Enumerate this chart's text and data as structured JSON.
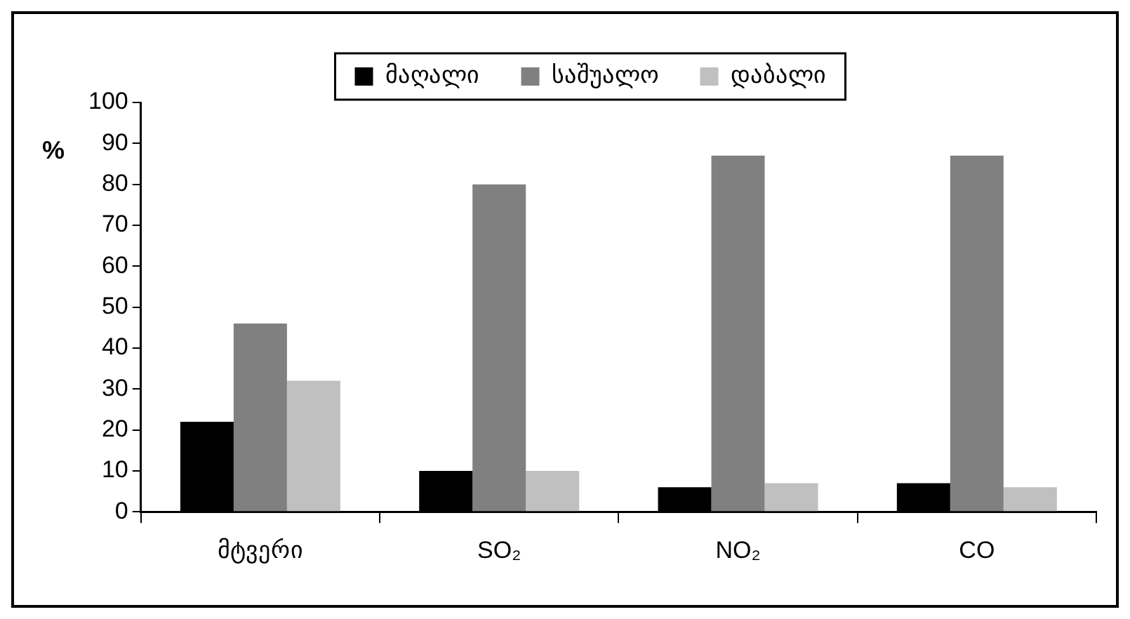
{
  "chart_data": {
    "type": "bar",
    "ylabel": "%",
    "categories": [
      "მტვერი",
      "SO₂",
      "NO₂",
      "CO"
    ],
    "series": [
      {
        "name": "მაღალი",
        "color": "#000000",
        "values": [
          22,
          10,
          6,
          7
        ]
      },
      {
        "name": "საშუალო",
        "color": "#808080",
        "values": [
          46,
          80,
          87,
          87
        ]
      },
      {
        "name": "დაბალი",
        "color": "#c0c0c0",
        "values": [
          32,
          10,
          7,
          6
        ]
      }
    ],
    "ylim": [
      0,
      100
    ],
    "yticks": [
      0,
      10,
      20,
      30,
      40,
      50,
      60,
      70,
      80,
      90,
      100
    ],
    "grid": false,
    "legend": "top"
  }
}
